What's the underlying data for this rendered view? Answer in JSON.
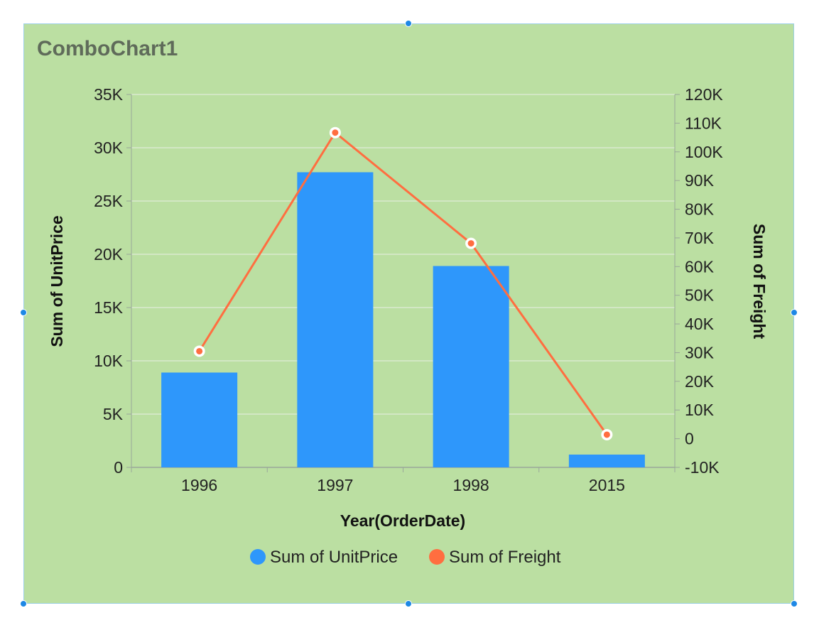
{
  "chart_data": {
    "type": "bar",
    "title": "ComboChart1",
    "categories": [
      "1996",
      "1997",
      "1998",
      "2015"
    ],
    "xlabel": "Year(OrderDate)",
    "ylabel": "Sum of UnitPrice",
    "y2label": "Sum of Freight",
    "ylim": [
      0,
      35000
    ],
    "y2lim": [
      -10000,
      120000
    ],
    "yticks": [
      "0",
      "5K",
      "10K",
      "15K",
      "20K",
      "25K",
      "30K",
      "35K"
    ],
    "y2ticks": [
      "-10K",
      "0",
      "10K",
      "20K",
      "30K",
      "40K",
      "50K",
      "60K",
      "70K",
      "80K",
      "90K",
      "100K",
      "110K",
      "120K"
    ],
    "grid": true,
    "legend_position": "bottom",
    "series": [
      {
        "name": "Sum of UnitPrice",
        "type": "bar",
        "axis": "left",
        "color": "#2e97fb",
        "values": [
          8900,
          27700,
          18900,
          1200
        ]
      },
      {
        "name": "Sum of Freight",
        "type": "line",
        "axis": "right",
        "color": "#ff6e40",
        "values": [
          30500,
          106700,
          68100,
          1400
        ]
      }
    ]
  }
}
